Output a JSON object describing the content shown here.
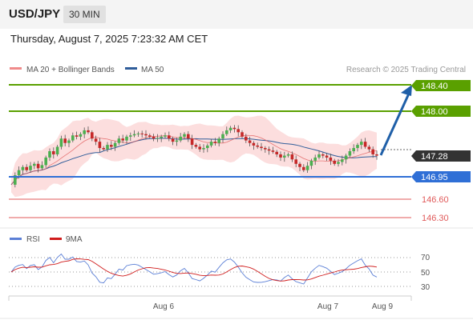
{
  "header": {
    "symbol": "USD/JPY",
    "timeframe": "30 MIN"
  },
  "datetime": "Thursday, August 7, 2025 7:23:32 AM CET",
  "legend": {
    "ma20": "MA 20 + Bollinger Bands",
    "ma50": "MA 50",
    "copyright": "Research © 2025 Trading Central"
  },
  "levels": {
    "target2": "148.40",
    "target1": "148.00",
    "current": "147.28",
    "pivot": "146.95",
    "support1": "146.60",
    "support2": "146.30"
  },
  "rsi_legend": {
    "rsi": "RSI",
    "ma": "9MA"
  },
  "rsi_ticks": [
    "70",
    "50",
    "30"
  ],
  "xaxis": {
    "d1": "Aug 6",
    "d2": "Aug 7",
    "d3": "Aug 9"
  },
  "colors": {
    "target": "#5aa000",
    "pivot": "#2f6fd6",
    "support": "#e05a5a",
    "current": "#333333",
    "candle_up": "#4caf50",
    "candle_down": "#c62828",
    "ma50": "#2f5d9a",
    "ma20": "#e05a5a",
    "band": "#fbd3d3",
    "arrow": "#1f5fa8"
  },
  "chart_data": {
    "type": "candlestick",
    "price_range": [
      146.3,
      148.4
    ],
    "close_path": [
      146.82,
      146.97,
      147.05,
      147.1,
      147.05,
      147.12,
      147.15,
      147.08,
      147.13,
      147.25,
      147.35,
      147.3,
      147.42,
      147.55,
      147.48,
      147.52,
      147.6,
      147.58,
      147.62,
      147.68,
      147.65,
      147.55,
      147.5,
      147.4,
      147.38,
      147.45,
      147.42,
      147.48,
      147.55,
      147.52,
      147.58,
      147.6,
      147.62,
      147.63,
      147.62,
      147.6,
      147.58,
      147.55,
      147.56,
      147.58,
      147.6,
      147.55,
      147.5,
      147.52,
      147.58,
      147.62,
      147.55,
      147.45,
      147.42,
      147.38,
      147.4,
      147.44,
      147.5,
      147.48,
      147.55,
      147.62,
      147.68,
      147.72,
      147.7,
      147.65,
      147.58,
      147.52,
      147.48,
      147.44,
      147.42,
      147.4,
      147.38,
      147.36,
      147.34,
      147.3,
      147.25,
      147.28,
      147.3,
      147.22,
      147.15,
      147.1,
      147.05,
      147.12,
      147.2,
      147.25,
      147.3,
      147.28,
      147.25,
      147.2,
      147.15,
      147.18,
      147.22,
      147.28,
      147.35,
      147.4,
      147.45,
      147.5,
      147.42,
      147.38,
      147.3,
      147.28
    ]
  }
}
